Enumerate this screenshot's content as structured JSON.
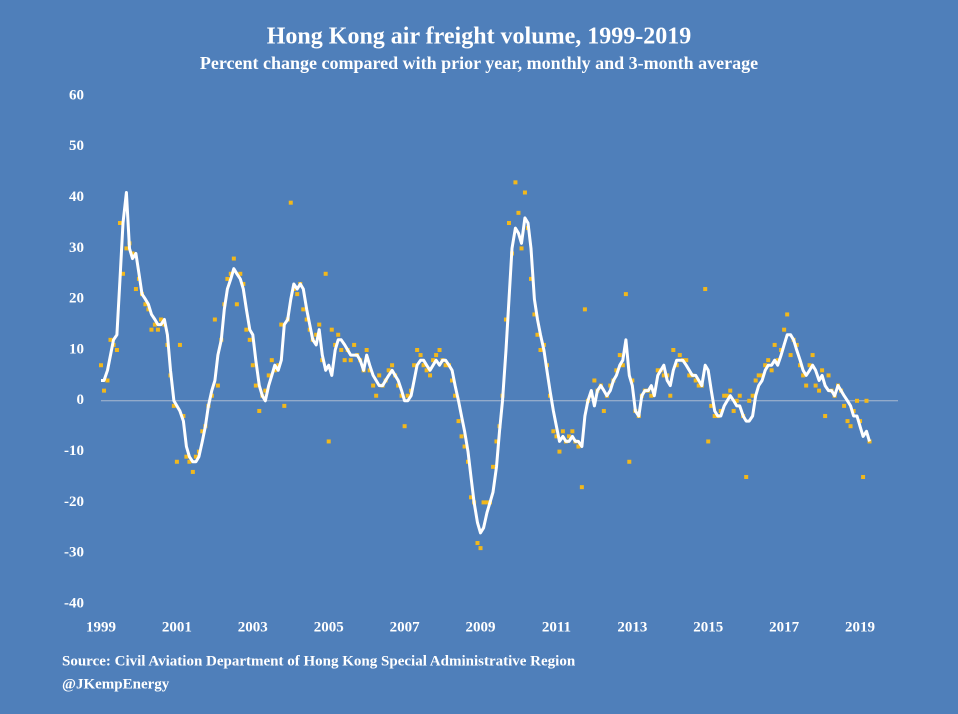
{
  "chart_data": {
    "type": "scatter-line",
    "title": "Hong Kong air freight volume, 1999-2019",
    "subtitle": "Percent change compared with prior year, monthly and 3-month average",
    "source": "Source: Civil Aviation Department of Hong Kong Special Administrative Region",
    "credit": "@JKempEnergy",
    "xlim": [
      1999,
      2020
    ],
    "xticks": [
      1999,
      2001,
      2003,
      2005,
      2007,
      2009,
      2011,
      2013,
      2015,
      2017,
      2019
    ],
    "ylim": [
      -40,
      60
    ],
    "yticks": [
      -40,
      -30,
      -20,
      -10,
      0,
      10,
      20,
      30,
      40,
      50,
      60
    ],
    "zero_line": true,
    "x": [
      1999,
      1999.08,
      1999.17,
      1999.25,
      1999.33,
      1999.42,
      1999.5,
      1999.58,
      1999.67,
      1999.75,
      1999.83,
      1999.92,
      2000,
      2000.08,
      2000.17,
      2000.25,
      2000.33,
      2000.42,
      2000.5,
      2000.58,
      2000.67,
      2000.75,
      2000.83,
      2000.92,
      2001,
      2001.08,
      2001.17,
      2001.25,
      2001.33,
      2001.42,
      2001.5,
      2001.58,
      2001.67,
      2001.75,
      2001.83,
      2001.92,
      2002,
      2002.08,
      2002.17,
      2002.25,
      2002.33,
      2002.42,
      2002.5,
      2002.58,
      2002.67,
      2002.75,
      2002.83,
      2002.92,
      2003,
      2003.08,
      2003.17,
      2003.25,
      2003.33,
      2003.42,
      2003.5,
      2003.58,
      2003.67,
      2003.75,
      2003.83,
      2003.92,
      2004,
      2004.08,
      2004.17,
      2004.25,
      2004.33,
      2004.42,
      2004.5,
      2004.58,
      2004.67,
      2004.75,
      2004.83,
      2004.92,
      2005,
      2005.08,
      2005.17,
      2005.25,
      2005.33,
      2005.42,
      2005.5,
      2005.58,
      2005.67,
      2005.75,
      2005.83,
      2005.92,
      2006,
      2006.08,
      2006.17,
      2006.25,
      2006.33,
      2006.42,
      2006.5,
      2006.58,
      2006.67,
      2006.75,
      2006.83,
      2006.92,
      2007,
      2007.08,
      2007.17,
      2007.25,
      2007.33,
      2007.42,
      2007.5,
      2007.58,
      2007.67,
      2007.75,
      2007.83,
      2007.92,
      2008,
      2008.08,
      2008.17,
      2008.25,
      2008.33,
      2008.42,
      2008.5,
      2008.58,
      2008.67,
      2008.75,
      2008.83,
      2008.92,
      2009,
      2009.08,
      2009.17,
      2009.25,
      2009.33,
      2009.42,
      2009.5,
      2009.58,
      2009.67,
      2009.75,
      2009.83,
      2009.92,
      2010,
      2010.08,
      2010.17,
      2010.25,
      2010.33,
      2010.42,
      2010.5,
      2010.58,
      2010.67,
      2010.75,
      2010.83,
      2010.92,
      2011,
      2011.08,
      2011.17,
      2011.25,
      2011.33,
      2011.42,
      2011.5,
      2011.58,
      2011.67,
      2011.75,
      2011.83,
      2011.92,
      2012,
      2012.08,
      2012.17,
      2012.25,
      2012.33,
      2012.42,
      2012.5,
      2012.58,
      2012.67,
      2012.75,
      2012.83,
      2012.92,
      2013,
      2013.08,
      2013.17,
      2013.25,
      2013.33,
      2013.42,
      2013.5,
      2013.58,
      2013.67,
      2013.75,
      2013.83,
      2013.92,
      2014,
      2014.08,
      2014.17,
      2014.25,
      2014.33,
      2014.42,
      2014.5,
      2014.58,
      2014.67,
      2014.75,
      2014.83,
      2014.92,
      2015,
      2015.08,
      2015.17,
      2015.25,
      2015.33,
      2015.42,
      2015.5,
      2015.58,
      2015.67,
      2015.75,
      2015.83,
      2015.92,
      2016,
      2016.08,
      2016.17,
      2016.25,
      2016.33,
      2016.42,
      2016.5,
      2016.58,
      2016.67,
      2016.75,
      2016.83,
      2016.92,
      2017,
      2017.08,
      2017.17,
      2017.25,
      2017.33,
      2017.42,
      2017.5,
      2017.58,
      2017.67,
      2017.75,
      2017.83,
      2017.92,
      2018,
      2018.08,
      2018.17,
      2018.25,
      2018.33,
      2018.42,
      2018.5,
      2018.58,
      2018.67,
      2018.75,
      2018.83,
      2018.92,
      2019,
      2019.08,
      2019.17,
      2019.25
    ],
    "series": [
      {
        "style": "markers",
        "color": "#f2b81c",
        "values": [
          7,
          2,
          4,
          12,
          11,
          10,
          35,
          25,
          30,
          31,
          29,
          22,
          24,
          21,
          19,
          18,
          14,
          15,
          14,
          16,
          15,
          11,
          5,
          -1,
          -12,
          11,
          -3,
          -11,
          -12,
          -14,
          -11,
          -10,
          -6,
          -5,
          -1,
          1,
          16,
          3,
          12,
          19,
          24,
          25,
          28,
          19,
          25,
          23,
          14,
          12,
          7,
          3,
          -2,
          1,
          2,
          5,
          8,
          6,
          7,
          15,
          -1,
          16,
          39,
          22,
          21,
          23,
          18,
          16,
          14,
          12,
          13,
          15,
          8,
          25,
          -8,
          14,
          11,
          13,
          10,
          8,
          10,
          8,
          11,
          9,
          8,
          6,
          10,
          6,
          3,
          1,
          5,
          3,
          4,
          6,
          7,
          5,
          3,
          1,
          -5,
          1,
          2,
          7,
          10,
          9,
          7,
          6,
          5,
          8,
          9,
          10,
          8,
          7,
          7,
          4,
          1,
          -4,
          -7,
          -9,
          -12,
          -19,
          -20,
          -28,
          -29,
          -20,
          -20,
          -20,
          -13,
          -8,
          -5,
          1,
          16,
          35,
          29,
          43,
          37,
          30,
          41,
          34,
          24,
          17,
          13,
          10,
          11,
          7,
          1,
          -6,
          -7,
          -10,
          -6,
          -8,
          -7,
          -6,
          -8,
          -9,
          -17,
          18,
          0,
          1,
          4,
          2,
          3,
          -2,
          1,
          3,
          4,
          6,
          9,
          7,
          21,
          -12,
          4,
          -2,
          -3,
          1,
          2,
          2,
          1,
          2,
          6,
          6,
          5,
          5,
          1,
          10,
          7,
          9,
          8,
          8,
          5,
          5,
          4,
          3,
          3,
          22,
          -8,
          -1,
          -3,
          -3,
          -2,
          1,
          1,
          2,
          -2,
          0,
          1,
          -3,
          -15,
          0,
          1,
          4,
          5,
          5,
          7,
          8,
          6,
          11,
          8,
          10,
          14,
          17,
          9,
          12,
          11,
          7,
          5,
          3,
          7,
          9,
          3,
          2,
          6,
          -3,
          5,
          2,
          1,
          3,
          2,
          -1,
          -4,
          -5,
          -2,
          0,
          -4,
          -15,
          0,
          -8
        ]
      },
      {
        "style": "line",
        "color": "#ffffff",
        "values": [
          4,
          4,
          6,
          9,
          12,
          13,
          24,
          35,
          41,
          30,
          28,
          29,
          25,
          21,
          20,
          19,
          17,
          16,
          15,
          15,
          16,
          13,
          6,
          0,
          -1,
          -2,
          -4,
          -9,
          -11,
          -12,
          -12,
          -11,
          -8,
          -5,
          -1,
          2,
          4,
          9,
          12,
          18,
          22,
          24,
          26,
          25,
          24,
          22,
          18,
          14,
          13,
          8,
          3,
          1,
          0,
          3,
          5,
          7,
          6,
          8,
          15,
          16,
          20,
          23,
          22,
          23,
          22,
          18,
          15,
          12,
          11,
          14,
          9,
          6,
          7,
          5,
          10,
          12,
          12,
          11,
          10,
          9,
          9,
          9,
          8,
          6,
          9,
          7,
          5,
          4,
          3,
          3,
          4,
          5,
          6,
          5,
          4,
          2,
          0,
          0,
          1,
          4,
          7,
          8,
          8,
          7,
          6,
          7,
          8,
          7,
          8,
          8,
          7,
          6,
          3,
          0,
          -3,
          -6,
          -10,
          -15,
          -20,
          -24,
          -26,
          -25,
          -22,
          -20,
          -18,
          -13,
          -6,
          0,
          10,
          20,
          30,
          34,
          33,
          31,
          36,
          35,
          30,
          20,
          16,
          13,
          10,
          6,
          2,
          -2,
          -5,
          -8,
          -7,
          -8,
          -8,
          -7,
          -8,
          -8,
          -9,
          -3,
          0,
          2,
          -1,
          2,
          3,
          2,
          1,
          2,
          4,
          5,
          7,
          8,
          12,
          5,
          3,
          -2,
          -3,
          1,
          2,
          2,
          3,
          1,
          5,
          6,
          7,
          4,
          3,
          6,
          8,
          8,
          8,
          7,
          6,
          5,
          5,
          4,
          3,
          7,
          6,
          2,
          -2,
          -3,
          -3,
          -1,
          0,
          1,
          0,
          -1,
          -1,
          -3,
          -4,
          -4,
          -3,
          1,
          3,
          4,
          6,
          7,
          7,
          8,
          7,
          9,
          11,
          13,
          13,
          12,
          10,
          8,
          6,
          5,
          6,
          7,
          6,
          4,
          5,
          3,
          2,
          2,
          1,
          3,
          2,
          1,
          0,
          -1,
          -3,
          -3,
          -5,
          -7,
          -6,
          -8
        ]
      }
    ]
  }
}
